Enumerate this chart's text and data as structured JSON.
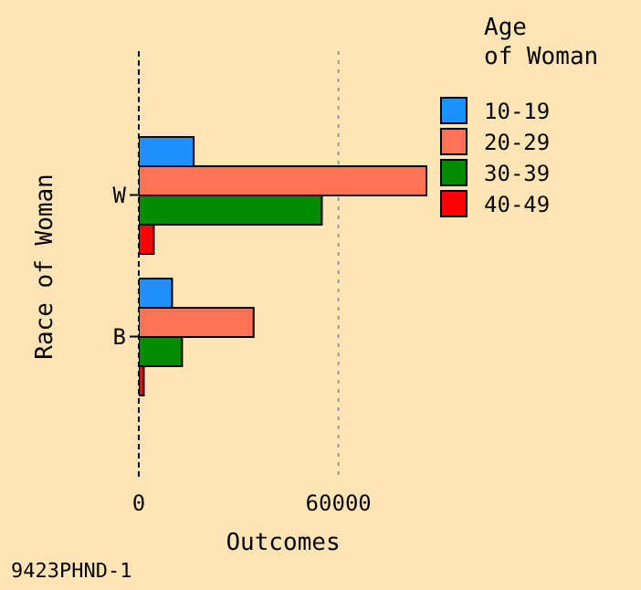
{
  "chart_data": {
    "type": "bar",
    "orientation": "horizontal",
    "categories": [
      "W",
      "B"
    ],
    "series": [
      {
        "name": "10-19",
        "color": "#1e90ff",
        "values": [
          16500,
          10000
        ]
      },
      {
        "name": "20-29",
        "color": "#ff7256",
        "values": [
          86500,
          34500
        ]
      },
      {
        "name": "30-39",
        "color": "#008b00",
        "values": [
          55000,
          13000
        ]
      },
      {
        "name": "40-49",
        "color": "#ff0000",
        "values": [
          4500,
          1500
        ]
      }
    ],
    "xlim": [
      0,
      86700
    ],
    "xticks": [
      0,
      60000
    ],
    "xlabel": "Outcomes",
    "ylabel": "Race of Woman",
    "legend_title": "Age\nof Woman",
    "legend": "top right",
    "grid": "x",
    "annotations": [
      "9423PHND-1"
    ]
  }
}
